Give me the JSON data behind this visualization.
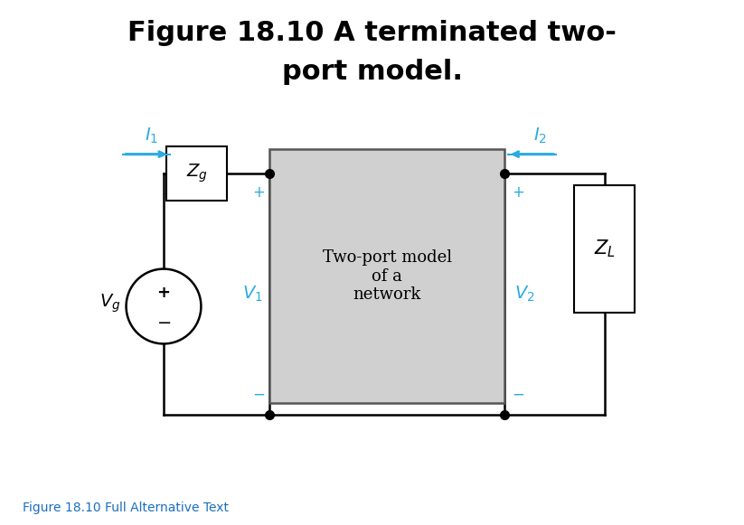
{
  "title_line1": "Figure 18.10 A terminated two-",
  "title_line2": "port model.",
  "title_fontsize": 22,
  "title_fontweight": "bold",
  "bg_color": "#ffffff",
  "cyan": "#29ABE2",
  "black": "#000000",
  "gray_fill": "#d0d0d0",
  "box_edge": "#555555",
  "alt_text": "Figure 18.10 Full Alternative Text",
  "alt_text_color": "#1a6fbf",
  "alt_text_fontsize": 10
}
